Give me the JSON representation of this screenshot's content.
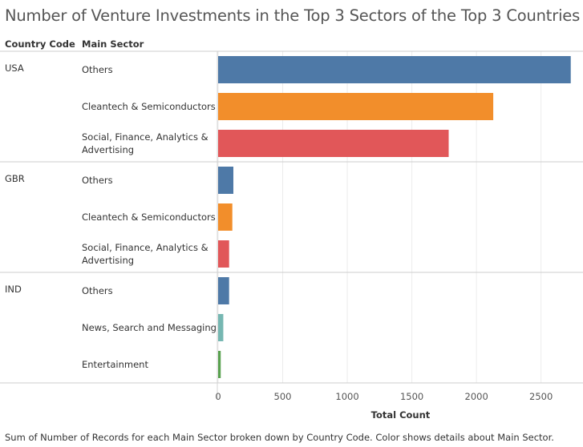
{
  "chart_data": {
    "type": "bar",
    "orientation": "horizontal",
    "title": "Number of Venture Investments in the Top 3 Sectors of the Top 3 Countries",
    "row_headers": [
      "Country Code",
      "Main Sector"
    ],
    "xlabel": "Total Count",
    "xlim": [
      0,
      2800
    ],
    "x_ticks": [
      "0",
      "500",
      "1000",
      "1500",
      "2000",
      "2500"
    ],
    "grid": true,
    "groups": [
      {
        "country": "USA",
        "rows": [
          {
            "sector": "Others",
            "value": 2730,
            "color": "#4e79a7"
          },
          {
            "sector": "Cleantech & Semiconductors",
            "value": 2130,
            "color": "#f28e2b"
          },
          {
            "sector": "Social, Finance, Analytics & Advertising",
            "value": 1785,
            "color": "#e15759"
          }
        ]
      },
      {
        "country": "GBR",
        "rows": [
          {
            "sector": "Others",
            "value": 118,
            "color": "#4e79a7"
          },
          {
            "sector": "Cleantech & Semiconductors",
            "value": 110,
            "color": "#f28e2b"
          },
          {
            "sector": "Social, Finance, Analytics & Advertising",
            "value": 85,
            "color": "#e15759"
          }
        ]
      },
      {
        "country": "IND",
        "rows": [
          {
            "sector": "Others",
            "value": 85,
            "color": "#4e79a7"
          },
          {
            "sector": "News, Search and Messaging",
            "value": 40,
            "color": "#76b7b2"
          },
          {
            "sector": "Entertainment",
            "value": 20,
            "color": "#59a14f"
          }
        ]
      }
    ]
  },
  "footer": "Sum of Number of Records for each Main Sector broken down by Country Code.  Color shows details about Main Sector."
}
